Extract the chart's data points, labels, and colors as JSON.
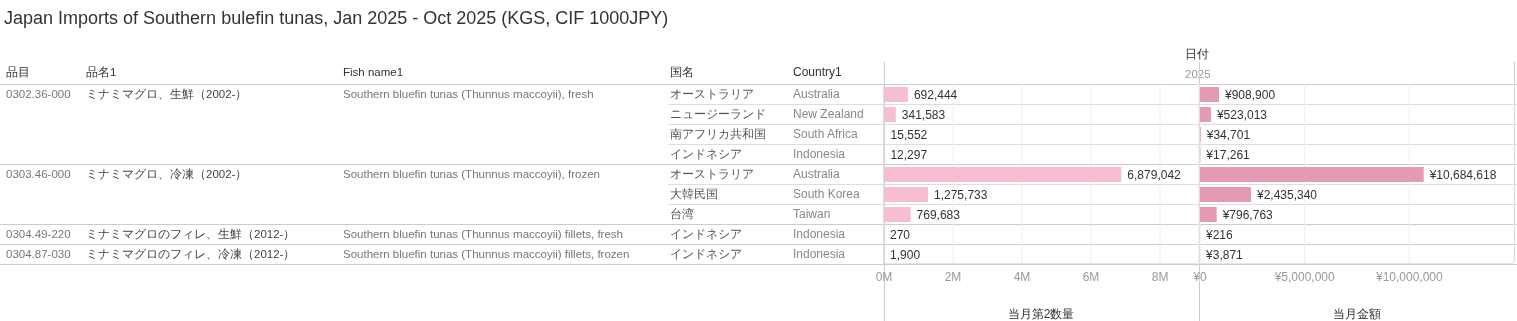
{
  "chart_data": [
    {
      "type": "other",
      "title": "Japan Imports of Southern bulefin tunas, Jan 2025 - Oct 2025 (KGS, CIF 1000JPY)",
      "annotations": [
        "品目",
        "品名1",
        "Fish name1",
        "国名",
        "日付",
        "2025",
        "0302.36-000",
        "ミナミマグロ、生鮮（2002-）",
        "Southern bluefin tunas (Thunnus maccoyii), fresh",
        "0303.46-000",
        "ミナミマグロ、冷凍（2002-）",
        "Southern bluefin tunas (Thunnus maccoyii), frozen",
        "0304.49-220",
        "ミナミマグロのフィレ、生鮮（2012-）",
        "Southern bluefin tunas (Thunnus maccoyii) fillets, fresh",
        "0304.87-030",
        "ミナミマグロのフィレ、冷凍（2012-）",
        "Southern bluefin tunas (Thunnus maccoyii) fillets, frozen",
        "オーストラリア",
        "ニュージーランド",
        "南アフリカ共和国",
        "インドネシア",
        "オーストラリア",
        "大韓民国",
        "台湾",
        "インドネシア",
        "インドネシア"
      ]
    },
    {
      "type": "bar",
      "orientation": "horizontal",
      "categories": [
        "Australia",
        "New Zealand",
        "South Africa",
        "Indonesia",
        "Australia",
        "South Korea",
        "Taiwan",
        "Indonesia",
        "Indonesia"
      ],
      "ylabel": "Country1",
      "xlabel": "当月第2数量",
      "values": [
        692444,
        341583,
        15552,
        12297,
        6879042,
        1275733,
        769683,
        270,
        1900
      ],
      "value_labels": [
        "692,444",
        "341,583",
        "15,552",
        "12,297",
        "6,879,042",
        "1,275,733",
        "769,683",
        "270",
        "1,900"
      ],
      "color": "#f7bdd3",
      "xlim": [
        0,
        9100000
      ],
      "xticks": [
        {
          "value": 0,
          "label": "0M"
        },
        {
          "value": 2000000,
          "label": "2M"
        },
        {
          "value": 4000000,
          "label": "4M"
        },
        {
          "value": 6000000,
          "label": "6M"
        },
        {
          "value": 8000000,
          "label": "8M"
        }
      ],
      "grid": "x"
    },
    {
      "type": "bar",
      "orientation": "horizontal",
      "tick_labels": "x",
      "xlabel": "当月金額",
      "values": [
        908900,
        523013,
        34701,
        17261,
        10684618,
        2435340,
        796763,
        216,
        3871
      ],
      "value_labels": [
        "¥908,900",
        "¥523,013",
        "¥34,701",
        "¥17,261",
        "¥10,684,618",
        "¥2,435,340",
        "¥796,763",
        "¥216",
        "¥3,871"
      ],
      "color": "#e59ab4",
      "xlim": [
        0,
        15000000
      ],
      "xticks": [
        {
          "value": 0,
          "label": "¥0"
        },
        {
          "value": 5000000,
          "label": "¥5,000,000"
        },
        {
          "value": 10000000,
          "label": "¥10,000,000"
        }
      ],
      "grid": "x"
    }
  ]
}
